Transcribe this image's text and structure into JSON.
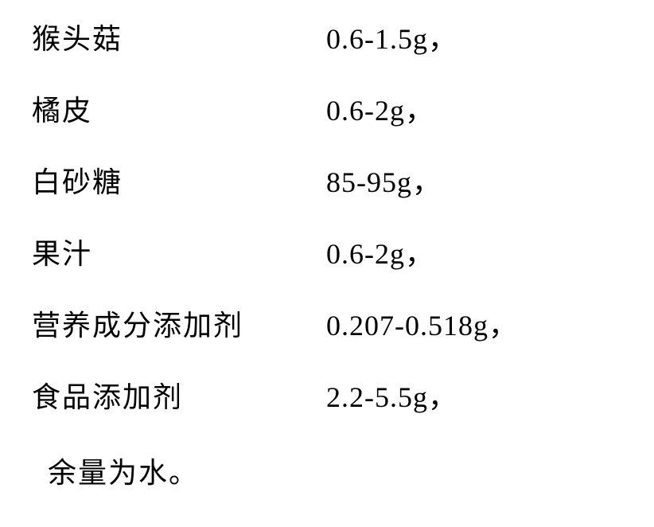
{
  "rows": [
    {
      "label": "猴头菇",
      "value": "0.6-1.5g，"
    },
    {
      "label": "橘皮",
      "value": "0.6-2g，"
    },
    {
      "label": "白砂糖",
      "value": "85-95g，"
    },
    {
      "label": "果汁",
      "value": "0.6-2g，"
    },
    {
      "label": "营养成分添加剂",
      "value": "0.207-0.518g，"
    },
    {
      "label": "食品添加剂",
      "value": "2.2-5.5g，"
    }
  ],
  "footer": "余量为水。",
  "style": {
    "font_family": "SimSun",
    "font_size": 36,
    "text_color": "#000000",
    "background_color": "#ffffff",
    "label_column_width": 370,
    "row_spacing": 38,
    "letter_spacing_cjk": 2,
    "letter_spacing_value": 1
  }
}
